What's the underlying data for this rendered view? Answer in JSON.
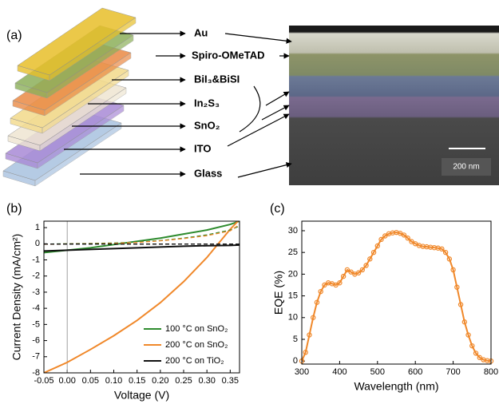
{
  "panel_a": {
    "label": "(a)",
    "layers": [
      "Au",
      "Spiro-OMeTAD",
      "BiI₃&BiSI",
      "In₂S₃",
      "SnO₂",
      "ITO",
      "Glass"
    ],
    "scale_bar": "200 nm"
  },
  "chart_data": [
    {
      "type": "line",
      "panel_label": "(b)",
      "x_label": "Voltage (V)",
      "y_label": "Current Density (mA/cm²)",
      "x": [
        -0.05,
        0,
        0.05,
        0.1,
        0.15,
        0.2,
        0.25,
        0.3,
        0.35,
        0.37
      ],
      "series": [
        {
          "name": "100 °C on SnO₂",
          "color": "#2e8b2e",
          "line_style": "solid",
          "values": [
            -0.55,
            -0.4,
            -0.25,
            -0.05,
            0.15,
            0.35,
            0.6,
            0.85,
            1.2,
            1.4
          ]
        },
        {
          "name": "200 °C on SnO₂",
          "color": "#f0882a",
          "line_style": "solid",
          "values": [
            -8,
            -7.35,
            -6.55,
            -5.7,
            -4.75,
            -3.65,
            -2.35,
            -0.85,
            0.9,
            1.5
          ]
        },
        {
          "name": "200 °C on TiO₂",
          "color": "#111111",
          "line_style": "solid",
          "values": [
            -0.45,
            -0.4,
            -0.35,
            -0.3,
            -0.25,
            -0.2,
            -0.15,
            -0.12,
            -0.1,
            -0.08
          ]
        },
        {
          "color": "#2e8b2e",
          "line_style": "dashed",
          "values": [
            -0.02,
            0,
            0.02,
            0.05,
            0.1,
            0.2,
            0.35,
            0.55,
            0.85,
            1.1
          ]
        },
        {
          "color": "#f0882a",
          "line_style": "dashed",
          "values": [
            -0.03,
            -0.01,
            0,
            0.02,
            0.08,
            0.18,
            0.32,
            0.5,
            0.8,
            1.2
          ]
        },
        {
          "color": "#111111",
          "line_style": "dashed",
          "values": [
            -0.02,
            -0.02,
            -0.02,
            -0.02,
            -0.02,
            -0.02,
            -0.02,
            -0.02,
            -0.02,
            -0.02
          ]
        }
      ],
      "xlim": [
        -0.05,
        0.37
      ],
      "xticks": [
        -0.05,
        {
          "value": 0,
          "label": "0.00"
        },
        0.05,
        {
          "value": 0.1,
          "label": "0.10"
        },
        0.15,
        {
          "value": 0.2,
          "label": "0.20"
        },
        0.25,
        {
          "value": 0.3,
          "label": "0.30"
        },
        0.35
      ],
      "ylim": [
        -8,
        1.4
      ],
      "yticks": [
        -8,
        -7,
        -6,
        -5,
        -4,
        -3,
        -2,
        -1,
        0,
        1
      ],
      "zero_line": true,
      "legend": "lower right"
    },
    {
      "type": "line",
      "panel_label": "(c)",
      "x_label": "Wavelength (nm)",
      "y_label": "EQE (%)",
      "markers": true,
      "x": [
        300,
        310,
        320,
        330,
        340,
        350,
        360,
        370,
        380,
        390,
        400,
        410,
        420,
        430,
        440,
        450,
        460,
        470,
        480,
        490,
        500,
        510,
        520,
        530,
        540,
        550,
        560,
        570,
        580,
        590,
        600,
        610,
        620,
        630,
        640,
        650,
        660,
        670,
        680,
        690,
        700,
        710,
        720,
        730,
        740,
        750,
        760,
        770,
        780,
        790,
        800
      ],
      "series": [
        {
          "color": "#f0882a",
          "line_style": "solid",
          "values": [
            0,
            2,
            6,
            10,
            13.5,
            16,
            17.5,
            18,
            17.8,
            17.5,
            18,
            19.5,
            21,
            20.5,
            20,
            20.3,
            21,
            22,
            23.5,
            25,
            26.5,
            28,
            28.8,
            29.3,
            29.5,
            29.6,
            29.4,
            29,
            28.3,
            27.5,
            27,
            26.6,
            26.4,
            26.3,
            26.2,
            26.1,
            26,
            25.8,
            25,
            23.5,
            21,
            17,
            13,
            9,
            6,
            3.5,
            1.8,
            0.8,
            0.3,
            0.1,
            0
          ]
        }
      ],
      "xlim": [
        300,
        800
      ],
      "xticks": [
        300,
        400,
        500,
        600,
        700,
        800
      ],
      "ylim": [
        -0.7,
        32.2
      ],
      "yticks": [
        0,
        5,
        10,
        15,
        20,
        25,
        30
      ]
    }
  ]
}
